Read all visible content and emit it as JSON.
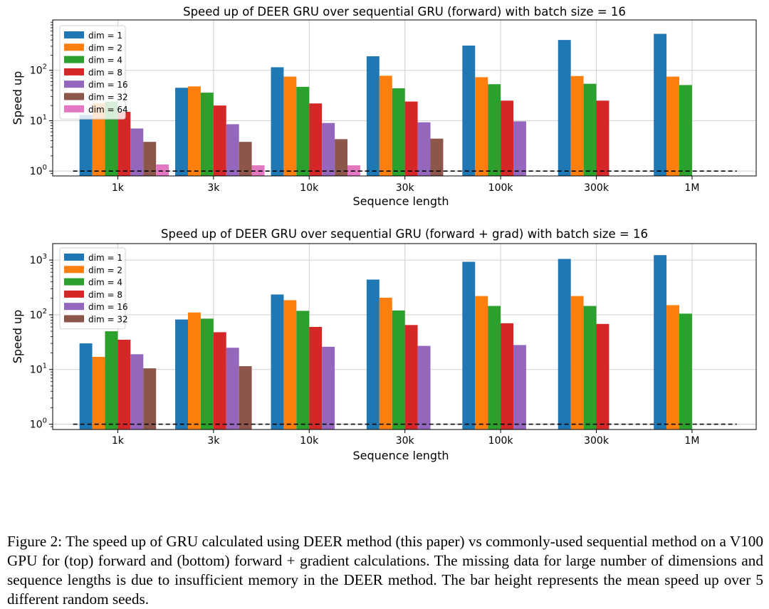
{
  "chart_data": [
    {
      "type": "bar",
      "title": "Speed up of DEER GRU over sequential GRU (forward) with batch size = 16",
      "xlabel": "Sequence length",
      "ylabel": "Speed up",
      "yscale": "log",
      "ylim": [
        0.8,
        1000
      ],
      "yticks": [
        {
          "value": 1,
          "label": "10^0"
        },
        {
          "value": 10,
          "label": "10^1"
        },
        {
          "value": 100,
          "label": "10^2"
        }
      ],
      "grid": true,
      "legend_position": "upper-left",
      "reference_line": {
        "y": 1,
        "style": "dashed"
      },
      "categories": [
        "1k",
        "3k",
        "10k",
        "30k",
        "100k",
        "300k",
        "1M"
      ],
      "series": [
        {
          "name": "dim = 1",
          "color": "#1f77b4",
          "values": [
            13,
            45,
            115,
            190,
            310,
            400,
            530
          ]
        },
        {
          "name": "dim = 2",
          "color": "#ff7f0e",
          "values": [
            22,
            48,
            75,
            78,
            73,
            77,
            75
          ]
        },
        {
          "name": "dim = 4",
          "color": "#2ca02c",
          "values": [
            24,
            36,
            47,
            44,
            53,
            54,
            51
          ]
        },
        {
          "name": "dim = 8",
          "color": "#d62728",
          "values": [
            15,
            20,
            22,
            24,
            25,
            25,
            null
          ]
        },
        {
          "name": "dim = 16",
          "color": "#9467bd",
          "values": [
            7,
            8.5,
            9,
            9.3,
            9.7,
            null,
            null
          ]
        },
        {
          "name": "dim = 32",
          "color": "#8c564b",
          "values": [
            3.8,
            3.8,
            4.3,
            4.4,
            null,
            null,
            null
          ]
        },
        {
          "name": "dim = 64",
          "color": "#e377c2",
          "values": [
            1.35,
            1.3,
            1.3,
            null,
            null,
            null,
            null
          ]
        }
      ]
    },
    {
      "type": "bar",
      "title": "Speed up of DEER GRU over sequential GRU (forward + grad) with batch size = 16",
      "xlabel": "Sequence length",
      "ylabel": "Speed up",
      "yscale": "log",
      "ylim": [
        0.8,
        2000
      ],
      "yticks": [
        {
          "value": 1,
          "label": "10^0"
        },
        {
          "value": 10,
          "label": "10^1"
        },
        {
          "value": 100,
          "label": "10^2"
        },
        {
          "value": 1000,
          "label": "10^3"
        }
      ],
      "grid": true,
      "legend_position": "upper-left",
      "reference_line": {
        "y": 1,
        "style": "dashed"
      },
      "categories": [
        "1k",
        "3k",
        "10k",
        "30k",
        "100k",
        "300k",
        "1M"
      ],
      "series": [
        {
          "name": "dim = 1",
          "color": "#1f77b4",
          "values": [
            30,
            82,
            235,
            440,
            930,
            1050,
            1230
          ]
        },
        {
          "name": "dim = 2",
          "color": "#ff7f0e",
          "values": [
            17,
            110,
            185,
            205,
            220,
            220,
            150
          ]
        },
        {
          "name": "dim = 4",
          "color": "#2ca02c",
          "values": [
            50,
            85,
            118,
            120,
            145,
            145,
            105
          ]
        },
        {
          "name": "dim = 8",
          "color": "#d62728",
          "values": [
            35,
            48,
            60,
            65,
            70,
            68,
            null
          ]
        },
        {
          "name": "dim = 16",
          "color": "#9467bd",
          "values": [
            19,
            25,
            26,
            27,
            28,
            null,
            null
          ]
        },
        {
          "name": "dim = 32",
          "color": "#8c564b",
          "values": [
            10.5,
            11.5,
            null,
            null,
            null,
            null,
            null
          ]
        }
      ]
    }
  ],
  "caption": "Figure 2: The speed up of GRU calculated using DEER method (this paper) vs commonly-used sequential method on a V100 GPU for (top) forward and (bottom) forward + gradient calculations. The missing data for large number of dimensions and sequence lengths is due to insufficient memory in the DEER method. The bar height represents the mean speed up over 5 different random seeds."
}
